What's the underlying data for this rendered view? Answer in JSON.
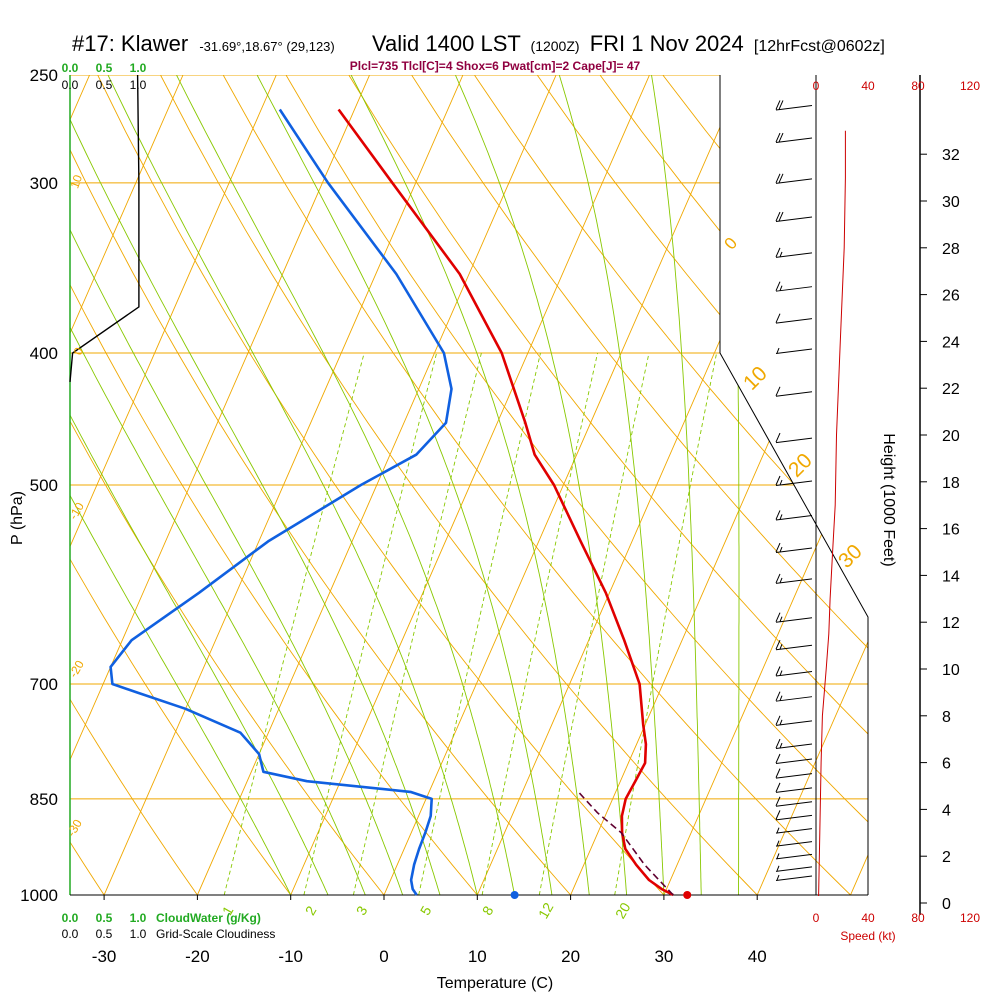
{
  "header": {
    "title_main": "#17: Klawer",
    "title_coords": "-31.69°,18.67° (29,123)",
    "title_valid": "Valid 1400 LST",
    "title_z": "(1200Z)",
    "title_date": "FRI 1 Nov 2024",
    "title_fcst": "[12hrFcst@0602z]",
    "indices": "Plcl=735 Tlcl[C]=4 Shox=6 Pwat[cm]=2 Cape[J]= 47"
  },
  "labels": {
    "pressure_axis": "P (hPa)",
    "temperature_axis": "Temperature (C)",
    "height_axis": "Height (1000 Feet)",
    "speed_axis": "Speed (kt)",
    "cloudwater": "CloudWater (g/Kg)",
    "cloudiness": "Grid-Scale Cloudiness"
  },
  "colors": {
    "isotherm": "#f0a800",
    "dry_adiabat": "#f0a800",
    "moist_adiabat": "#88c800",
    "mixing_ratio": "#88c800",
    "temperature": "#e00000",
    "dewpoint": "#1060e0",
    "parcel": "#600030",
    "wind_speed": "#cc0000",
    "cloud_water": "#22aa22",
    "title_indices": "#900040"
  },
  "chart_data": {
    "type": "skew-t",
    "pressure_ticks": [
      250,
      300,
      400,
      500,
      700,
      850,
      1000
    ],
    "temperature_ticks": [
      -30,
      -20,
      -10,
      0,
      10,
      20,
      30,
      40
    ],
    "height_ticks": [
      0,
      2,
      4,
      6,
      8,
      10,
      12,
      14,
      16,
      18,
      20,
      22,
      24,
      26,
      28,
      30,
      32
    ],
    "speed_ticks_top": [
      0,
      40,
      80,
      120
    ],
    "speed_ticks_bottom": [
      0,
      40,
      80,
      120
    ],
    "cloud_scale_top": [
      "0.0",
      "0.5",
      "1.0"
    ],
    "cloudiness_scale_top": [
      "0.0",
      "0.5",
      "1.0"
    ],
    "cloud_scale_bottom": [
      "0.0",
      "0.5",
      "1.0"
    ],
    "cloudiness_scale_bottom": [
      "0.0",
      "0.5",
      "1.0"
    ],
    "dry_adiabat_labels": [
      "10",
      "0",
      "-10",
      "-20",
      "-30",
      "0",
      "10",
      "20",
      "30"
    ],
    "mixing_ratio_labels": [
      "1",
      "2",
      "3",
      "5",
      "8",
      "12",
      "20"
    ],
    "temperature_profile": [
      {
        "p": 1000,
        "t": 31.0
      },
      {
        "p": 990,
        "t": 29.5
      },
      {
        "p": 975,
        "t": 27.7
      },
      {
        "p": 950,
        "t": 25.6
      },
      {
        "p": 925,
        "t": 23.7
      },
      {
        "p": 900,
        "t": 22.6
      },
      {
        "p": 875,
        "t": 21.8
      },
      {
        "p": 850,
        "t": 21.4
      },
      {
        "p": 825,
        "t": 21.6
      },
      {
        "p": 800,
        "t": 21.8
      },
      {
        "p": 775,
        "t": 21.0
      },
      {
        "p": 750,
        "t": 19.8
      },
      {
        "p": 700,
        "t": 17.5
      },
      {
        "p": 650,
        "t": 13.8
      },
      {
        "p": 600,
        "t": 9.6
      },
      {
        "p": 550,
        "t": 4.5
      },
      {
        "p": 500,
        "t": -1.0
      },
      {
        "p": 475,
        "t": -4.5
      },
      {
        "p": 450,
        "t": -7.0
      },
      {
        "p": 400,
        "t": -12.8
      },
      {
        "p": 350,
        "t": -21.0
      },
      {
        "p": 300,
        "t": -32.5
      },
      {
        "p": 265,
        "t": -41.7
      }
    ],
    "dewpoint_profile": [
      {
        "p": 1000,
        "td": 3.5
      },
      {
        "p": 990,
        "td": 2.8
      },
      {
        "p": 975,
        "td": 2.2
      },
      {
        "p": 950,
        "td": 1.8
      },
      {
        "p": 925,
        "td": 1.6
      },
      {
        "p": 900,
        "td": 1.5
      },
      {
        "p": 875,
        "td": 1.3
      },
      {
        "p": 850,
        "td": 0.6
      },
      {
        "p": 840,
        "td": -2.0
      },
      {
        "p": 825,
        "td": -13.6
      },
      {
        "p": 812,
        "td": -18.7
      },
      {
        "p": 788,
        "td": -20.0
      },
      {
        "p": 760,
        "td": -23.0
      },
      {
        "p": 730,
        "td": -30.0
      },
      {
        "p": 710,
        "td": -36.0
      },
      {
        "p": 700,
        "td": -39.0
      },
      {
        "p": 680,
        "td": -40.0
      },
      {
        "p": 650,
        "td": -39.0
      },
      {
        "p": 600,
        "td": -34.0
      },
      {
        "p": 550,
        "td": -29.0
      },
      {
        "p": 500,
        "td": -21.7
      },
      {
        "p": 475,
        "td": -17.2
      },
      {
        "p": 450,
        "td": -15.5
      },
      {
        "p": 425,
        "td": -16.5
      },
      {
        "p": 400,
        "td": -19.0
      },
      {
        "p": 350,
        "td": -27.8
      },
      {
        "p": 300,
        "td": -39.4
      },
      {
        "p": 265,
        "td": -48.0
      }
    ],
    "parcel_profile": [
      {
        "p": 1000,
        "t": 31.0
      },
      {
        "p": 950,
        "t": 26.5
      },
      {
        "p": 900,
        "t": 22.5
      },
      {
        "p": 870,
        "t": 19.0
      },
      {
        "p": 840,
        "t": 16.0
      }
    ],
    "surface": {
      "t": 32.5,
      "td": 14.0
    },
    "wind_speed_profile": [
      {
        "h": 0.3,
        "kt": 2
      },
      {
        "h": 3,
        "kt": 3
      },
      {
        "h": 6,
        "kt": 4
      },
      {
        "h": 8,
        "kt": 5
      },
      {
        "h": 10,
        "kt": 8
      },
      {
        "h": 11.5,
        "kt": 10
      },
      {
        "h": 13,
        "kt": 11
      },
      {
        "h": 15,
        "kt": 13
      },
      {
        "h": 17,
        "kt": 15
      },
      {
        "h": 20,
        "kt": 16
      },
      {
        "h": 24,
        "kt": 19
      },
      {
        "h": 28,
        "kt": 22
      },
      {
        "h": 31,
        "kt": 23
      },
      {
        "h": 33,
        "kt": 23
      }
    ],
    "cloudiness_profile": [
      {
        "p": 250,
        "v": 0.52
      },
      {
        "p": 300,
        "v": 0.53
      },
      {
        "p": 370,
        "v": 0.53
      },
      {
        "p": 400,
        "v": 0.02
      },
      {
        "p": 420,
        "v": 0.0
      }
    ],
    "wind_barbs": [
      {
        "p": 265,
        "kt": 20
      },
      {
        "p": 280,
        "kt": 20
      },
      {
        "p": 300,
        "kt": 20
      },
      {
        "p": 320,
        "kt": 20
      },
      {
        "p": 340,
        "kt": 15
      },
      {
        "p": 360,
        "kt": 15
      },
      {
        "p": 380,
        "kt": 10
      },
      {
        "p": 400,
        "kt": 5
      },
      {
        "p": 430,
        "kt": 10
      },
      {
        "p": 465,
        "kt": 10
      },
      {
        "p": 500,
        "kt": 15
      },
      {
        "p": 530,
        "kt": 15
      },
      {
        "p": 560,
        "kt": 15
      },
      {
        "p": 590,
        "kt": 15
      },
      {
        "p": 630,
        "kt": 15
      },
      {
        "p": 660,
        "kt": 15
      },
      {
        "p": 690,
        "kt": 15
      },
      {
        "p": 720,
        "kt": 15
      },
      {
        "p": 750,
        "kt": 15
      },
      {
        "p": 780,
        "kt": 15
      },
      {
        "p": 800,
        "kt": 10
      },
      {
        "p": 820,
        "kt": 10
      },
      {
        "p": 840,
        "kt": 10
      },
      {
        "p": 860,
        "kt": 10
      },
      {
        "p": 880,
        "kt": 10
      },
      {
        "p": 900,
        "kt": 5
      },
      {
        "p": 920,
        "kt": 5
      },
      {
        "p": 940,
        "kt": 5
      },
      {
        "p": 960,
        "kt": 5
      },
      {
        "p": 975,
        "kt": 5
      }
    ]
  }
}
